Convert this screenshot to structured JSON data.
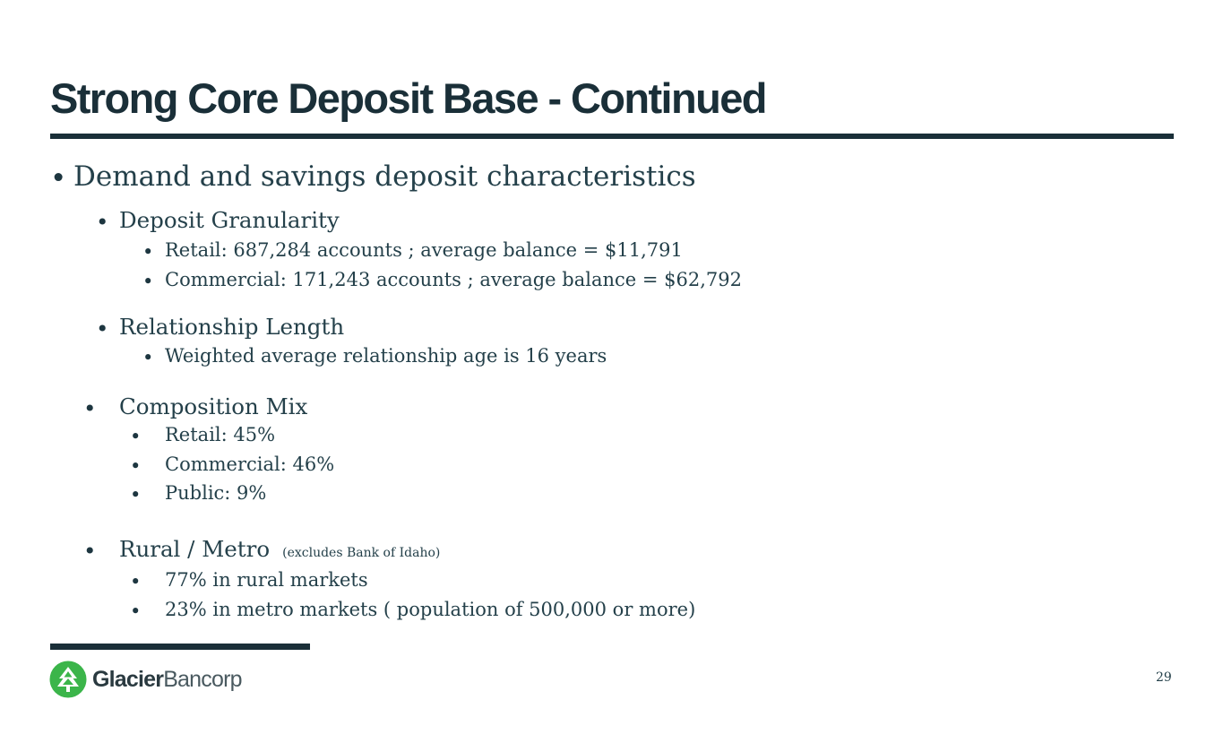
{
  "slide": {
    "title": "Strong Core Deposit Base - Continued",
    "page_number": "29"
  },
  "bullets": {
    "main": "Demand and savings deposit characteristics",
    "granularity": {
      "heading": "Deposit Granularity",
      "items": [
        "Retail: 687,284 accounts ; average balance = $11,791",
        "Commercial: 171,243 accounts ; average balance = $62,792"
      ]
    },
    "relationship": {
      "heading": "Relationship Length",
      "items": [
        "Weighted average relationship age is 16 years"
      ]
    },
    "composition": {
      "heading": "Composition Mix",
      "items": [
        "Retail: 45%",
        "Commercial: 46%",
        "Public: 9%"
      ]
    },
    "rural_metro": {
      "heading": "Rural / Metro",
      "note": "(excludes Bank of Idaho)",
      "items": [
        "77% in rural markets",
        "23% in metro markets ( population of 500,000 or more)"
      ]
    }
  },
  "logo": {
    "name_bold": "Glacier",
    "name_regular": "Bancorp",
    "icon": "glacier-mountain-icon",
    "color": "#3bb54a"
  },
  "bullet_glyph": "•"
}
